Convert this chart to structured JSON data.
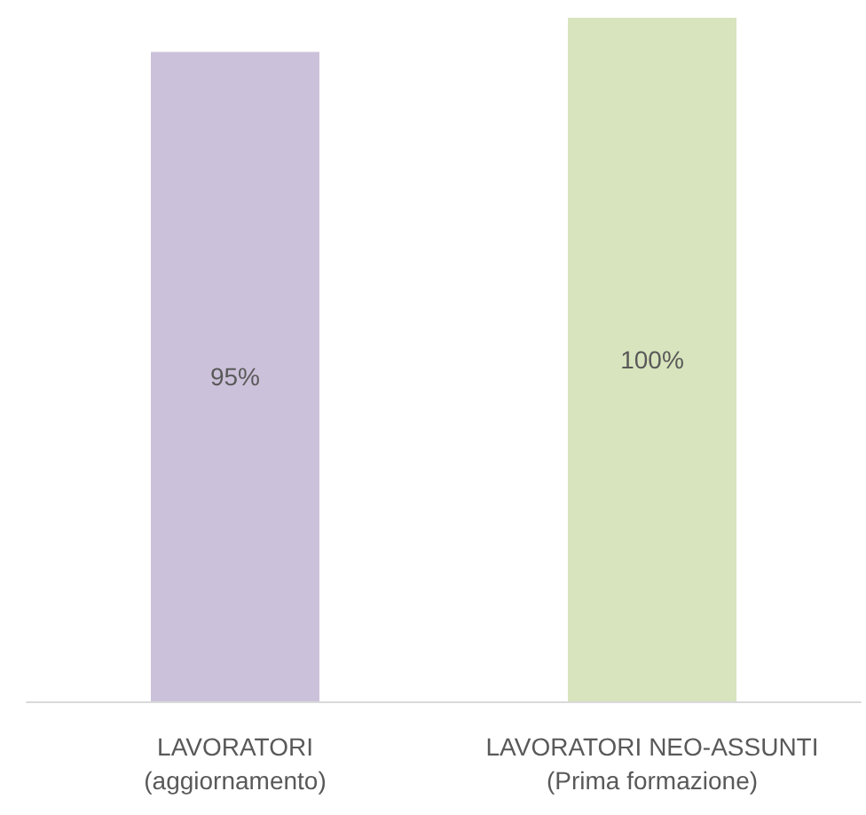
{
  "chart_data": {
    "type": "bar",
    "categories": [
      "LAVORATORI\n(aggiornamento)",
      "LAVORATORI NEO-ASSUNTI\n(Prima formazione)"
    ],
    "values": [
      95,
      100
    ],
    "colors": [
      "#ccc1da",
      "#d7e4bd"
    ],
    "value_labels": [
      "95%",
      "100%"
    ]
  }
}
